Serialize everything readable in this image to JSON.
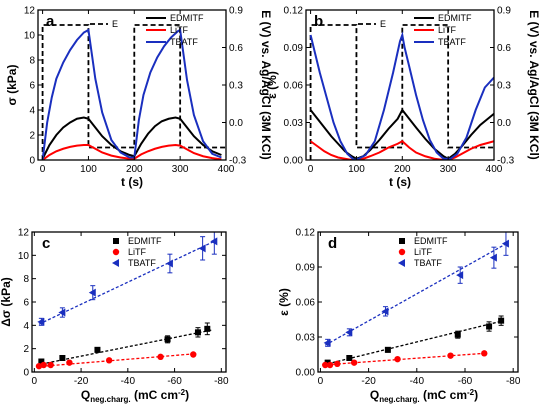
{
  "chart_data": [
    {
      "panel": "a",
      "type": "line",
      "xlabel": "t (s)",
      "ylabel": "σ (kPa)",
      "y2label": "E (V) vs. Ag/AgCl (3M KCl)",
      "xlim": [
        -10,
        400
      ],
      "ylim": [
        0,
        12
      ],
      "y2lim": [
        -0.3,
        0.9
      ],
      "xticks": [
        0,
        100,
        200,
        300,
        400
      ],
      "yticks": [
        0,
        2,
        4,
        6,
        8,
        10,
        12
      ],
      "y2ticks": [
        -0.3,
        0.0,
        0.3,
        0.6,
        0.9
      ],
      "legend_position": "top-right",
      "step": {
        "name": "E",
        "color": "#000000",
        "x": [
          0,
          0,
          100,
          100,
          200,
          200,
          300,
          300,
          400
        ],
        "y": [
          -0.3,
          0.78,
          0.78,
          -0.2,
          -0.2,
          0.78,
          0.78,
          -0.2,
          -0.2
        ]
      },
      "series": [
        {
          "name": "EDMITF",
          "color": "#000000",
          "x": [
            0,
            15,
            30,
            45,
            60,
            75,
            90,
            100,
            115,
            130,
            150,
            170,
            190,
            200,
            215,
            230,
            245,
            260,
            275,
            290,
            300,
            315,
            330,
            350,
            370,
            390
          ],
          "y": [
            0.1,
            1.2,
            2.0,
            2.6,
            3.0,
            3.3,
            3.4,
            3.3,
            2.6,
            1.9,
            1.2,
            0.7,
            0.4,
            0.3,
            1.3,
            2.1,
            2.7,
            3.1,
            3.3,
            3.4,
            3.3,
            2.6,
            1.9,
            1.2,
            0.7,
            0.4
          ]
        },
        {
          "name": "LiTF",
          "color": "#ff0000",
          "x": [
            0,
            15,
            30,
            45,
            60,
            75,
            90,
            100,
            115,
            130,
            150,
            170,
            190,
            200,
            215,
            230,
            245,
            260,
            275,
            290,
            300,
            315,
            330,
            350,
            370,
            390
          ],
          "y": [
            0.0,
            0.4,
            0.7,
            0.9,
            1.05,
            1.15,
            1.2,
            1.2,
            0.9,
            0.6,
            0.35,
            0.2,
            0.1,
            0.1,
            0.45,
            0.7,
            0.9,
            1.05,
            1.15,
            1.2,
            1.15,
            0.85,
            0.55,
            0.3,
            0.15,
            0.05
          ]
        },
        {
          "name": "TBATF",
          "color": "#1a2fbf",
          "x": [
            0,
            10,
            20,
            30,
            45,
            60,
            75,
            90,
            100,
            115,
            130,
            150,
            170,
            190,
            200,
            210,
            220,
            235,
            250,
            265,
            280,
            295,
            300,
            315,
            330,
            350,
            370,
            390
          ],
          "y": [
            0.0,
            3.0,
            5.0,
            6.5,
            7.8,
            8.8,
            9.6,
            10.2,
            10.4,
            6.5,
            3.8,
            1.6,
            0.6,
            0.2,
            0.2,
            3.2,
            5.2,
            7.0,
            8.2,
            9.1,
            9.8,
            10.3,
            10.4,
            6.4,
            3.6,
            1.5,
            0.5,
            0.2
          ]
        }
      ]
    },
    {
      "panel": "b",
      "type": "line",
      "xlabel": "t (s)",
      "ylabel": "ε (%)",
      "y2label": "E (V) vs. Ag/AgCl (3M KCl)",
      "xlim": [
        -10,
        400
      ],
      "ylim": [
        0,
        0.12
      ],
      "y2lim": [
        -0.3,
        0.9
      ],
      "xticks": [
        0,
        100,
        200,
        300,
        400
      ],
      "yticks": [
        0.0,
        0.03,
        0.06,
        0.09,
        0.12
      ],
      "y2ticks": [
        -0.3,
        0.0,
        0.3,
        0.6,
        0.9
      ],
      "legend_position": "top-right",
      "step": {
        "name": "E",
        "color": "#000000",
        "x": [
          0,
          0,
          100,
          100,
          200,
          200,
          300,
          300,
          400
        ],
        "y": [
          -0.3,
          0.78,
          0.78,
          -0.2,
          -0.2,
          0.78,
          0.78,
          -0.2,
          -0.2
        ]
      },
      "series": [
        {
          "name": "EDMITF",
          "color": "#000000",
          "x": [
            0,
            15,
            30,
            45,
            60,
            75,
            90,
            100,
            115,
            130,
            150,
            170,
            190,
            200,
            215,
            230,
            250,
            270,
            290,
            300,
            315,
            330,
            350,
            370,
            390,
            400
          ],
          "y": [
            0.04,
            0.033,
            0.026,
            0.019,
            0.013,
            0.007,
            0.003,
            0.001,
            0.003,
            0.008,
            0.016,
            0.025,
            0.033,
            0.04,
            0.033,
            0.026,
            0.017,
            0.009,
            0.003,
            0.001,
            0.005,
            0.011,
            0.02,
            0.028,
            0.034,
            0.037
          ]
        },
        {
          "name": "LiTF",
          "color": "#ff0000",
          "x": [
            0,
            15,
            30,
            45,
            60,
            75,
            90,
            100,
            115,
            130,
            150,
            170,
            190,
            200,
            215,
            230,
            250,
            270,
            290,
            300,
            315,
            330,
            350,
            370,
            390,
            400
          ],
          "y": [
            0.015,
            0.011,
            0.007,
            0.004,
            0.002,
            0.001,
            0.0,
            0.0,
            0.001,
            0.003,
            0.006,
            0.01,
            0.013,
            0.015,
            0.01,
            0.006,
            0.003,
            0.001,
            0.0,
            0.0,
            0.002,
            0.005,
            0.009,
            0.012,
            0.014,
            0.015
          ]
        },
        {
          "name": "TBATF",
          "color": "#1a2fbf",
          "x": [
            0,
            10,
            20,
            35,
            50,
            65,
            80,
            95,
            105,
            120,
            140,
            160,
            180,
            195,
            200,
            205,
            215,
            230,
            245,
            260,
            275,
            290,
            305,
            320,
            340,
            360,
            380,
            400
          ],
          "y": [
            0.1,
            0.085,
            0.07,
            0.05,
            0.03,
            0.015,
            0.005,
            0.0,
            0.001,
            0.004,
            0.015,
            0.04,
            0.07,
            0.095,
            0.1,
            0.09,
            0.075,
            0.052,
            0.032,
            0.016,
            0.006,
            0.001,
            0.001,
            0.005,
            0.018,
            0.04,
            0.058,
            0.066
          ]
        }
      ]
    },
    {
      "panel": "c",
      "type": "scatter",
      "xlabel": "Q",
      "xlabel_sub": "neg.charg.",
      "xlabel_unit": " (mC cm",
      "xlabel_sup": "-2",
      "xlabel_end": ")",
      "ylabel": "Δσ (kPa)",
      "xlim": [
        1,
        -82
      ],
      "ylim": [
        0,
        12
      ],
      "xticks": [
        0,
        -20,
        -40,
        -60,
        -80
      ],
      "xtick_labels": [
        "0",
        "-20",
        "-40",
        "-60",
        "-80"
      ],
      "yticks": [
        0,
        2,
        4,
        6,
        8,
        10,
        12
      ],
      "legend_position": "top-left",
      "series": [
        {
          "name": "EDMITF",
          "color": "#000000",
          "marker": "square",
          "x": [
            -3,
            -12,
            -27,
            -57,
            -70,
            -74
          ],
          "y": [
            0.9,
            1.2,
            1.9,
            2.8,
            3.4,
            3.7
          ],
          "err": [
            0.2,
            0.2,
            0.2,
            0.3,
            0.4,
            0.5
          ],
          "fit": [
            [
              -1,
              0.6
            ],
            [
              -76,
              3.6
            ]
          ]
        },
        {
          "name": "LiTF",
          "color": "#ff0000",
          "marker": "circle",
          "x": [
            -2,
            -4,
            -7,
            -15,
            -32,
            -54,
            -68
          ],
          "y": [
            0.5,
            0.6,
            0.6,
            0.8,
            1.0,
            1.3,
            1.5
          ],
          "err": [
            0.1,
            0.1,
            0.1,
            0.1,
            0.1,
            0.1,
            0.1
          ],
          "fit": [
            [
              -1,
              0.45
            ],
            [
              -68,
              1.55
            ]
          ]
        },
        {
          "name": "TBATF",
          "color": "#1a2fbf",
          "marker": "triangle-left",
          "x": [
            -3,
            -12,
            -25,
            -58,
            -72,
            -77
          ],
          "y": [
            4.3,
            5.1,
            6.8,
            9.3,
            10.6,
            11.2
          ],
          "err": [
            0.3,
            0.4,
            0.6,
            0.8,
            1.0,
            1.1
          ],
          "fit": [
            [
              -2,
              4.1
            ],
            [
              -78,
              11.3
            ]
          ]
        }
      ]
    },
    {
      "panel": "d",
      "type": "scatter",
      "xlabel": "Q",
      "xlabel_sub": "neg.charg.",
      "xlabel_unit": " (mC cm",
      "xlabel_sup": "-2",
      "xlabel_end": ")",
      "ylabel": "ε (%)",
      "xlim": [
        1,
        -82
      ],
      "ylim": [
        0,
        0.12
      ],
      "xticks": [
        0,
        -20,
        -40,
        -60,
        -80
      ],
      "xtick_labels": [
        "0",
        "-20",
        "-40",
        "-60",
        "-80"
      ],
      "yticks": [
        0.0,
        0.03,
        0.06,
        0.09,
        0.12
      ],
      "legend_position": "top-left",
      "series": [
        {
          "name": "EDMITF",
          "color": "#000000",
          "marker": "square",
          "x": [
            -3,
            -12,
            -28,
            -57,
            -70,
            -75
          ],
          "y": [
            0.008,
            0.012,
            0.019,
            0.032,
            0.039,
            0.044
          ],
          "err": [
            0.002,
            0.002,
            0.002,
            0.003,
            0.004,
            0.004
          ],
          "fit": [
            [
              -1,
              0.006
            ],
            [
              -76,
              0.044
            ]
          ]
        },
        {
          "name": "LiTF",
          "color": "#ff0000",
          "marker": "circle",
          "x": [
            -2,
            -4,
            -7,
            -14,
            -32,
            -54,
            -68
          ],
          "y": [
            0.006,
            0.006,
            0.007,
            0.008,
            0.011,
            0.014,
            0.016
          ],
          "err": [
            0.001,
            0.001,
            0.001,
            0.001,
            0.001,
            0.001,
            0.001
          ],
          "fit": [
            [
              -1,
              0.006
            ],
            [
              -68,
              0.016
            ]
          ]
        },
        {
          "name": "TBATF",
          "color": "#1a2fbf",
          "marker": "triangle-left",
          "x": [
            -3,
            -12,
            -27,
            -58,
            -72,
            -77
          ],
          "y": [
            0.025,
            0.034,
            0.052,
            0.083,
            0.098,
            0.11
          ],
          "err": [
            0.003,
            0.003,
            0.004,
            0.007,
            0.009,
            0.01
          ],
          "fit": [
            [
              -2,
              0.023
            ],
            [
              -78,
              0.111
            ]
          ]
        }
      ]
    }
  ]
}
